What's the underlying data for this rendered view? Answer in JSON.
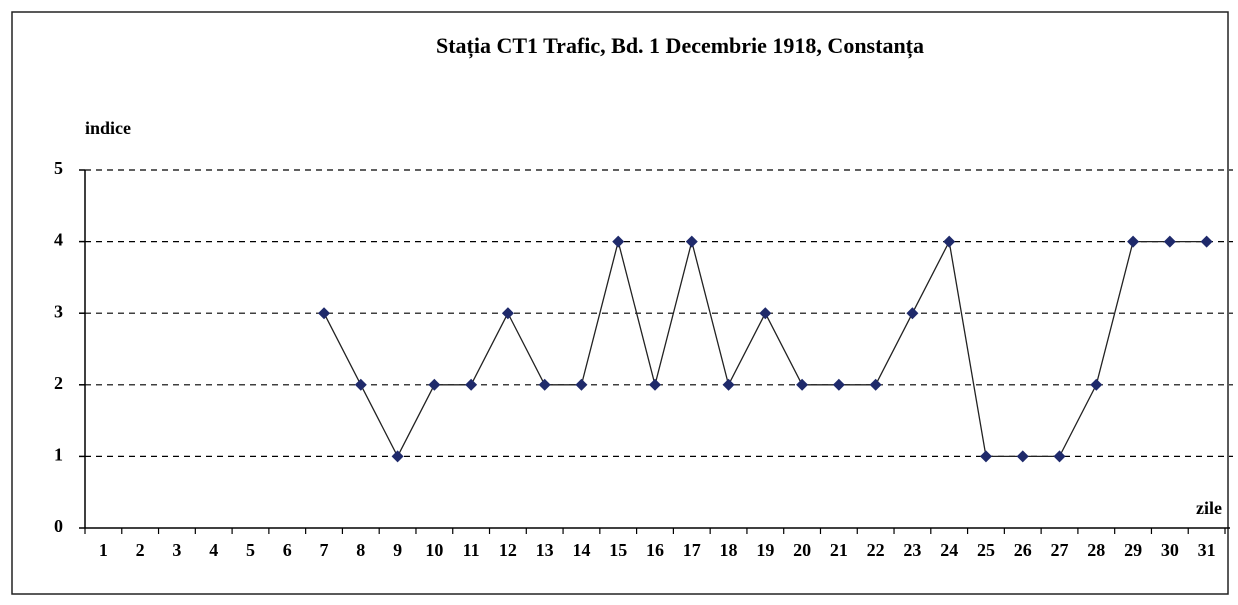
{
  "chart_data": {
    "type": "line",
    "title": "Stația CT1 Trafic, Bd. 1 Decembrie 1918, Constanța",
    "y_label": "indice",
    "x_label": "zile",
    "categories": [
      "1",
      "2",
      "3",
      "4",
      "5",
      "6",
      "7",
      "8",
      "9",
      "10",
      "11",
      "12",
      "13",
      "14",
      "15",
      "16",
      "17",
      "18",
      "19",
      "20",
      "21",
      "22",
      "23",
      "24",
      "25",
      "26",
      "27",
      "28",
      "29",
      "30",
      "31"
    ],
    "series": [
      {
        "name": "indice",
        "color": "#1f2a6b",
        "values": [
          null,
          null,
          null,
          null,
          null,
          null,
          3,
          2,
          1,
          2,
          2,
          3,
          2,
          2,
          4,
          2,
          4,
          2,
          3,
          2,
          2,
          2,
          3,
          4,
          1,
          1,
          1,
          2,
          4,
          4,
          4
        ]
      }
    ],
    "ylim": [
      0,
      5
    ],
    "yticks": [
      0,
      1,
      2,
      3,
      4,
      5
    ],
    "grid": true
  }
}
